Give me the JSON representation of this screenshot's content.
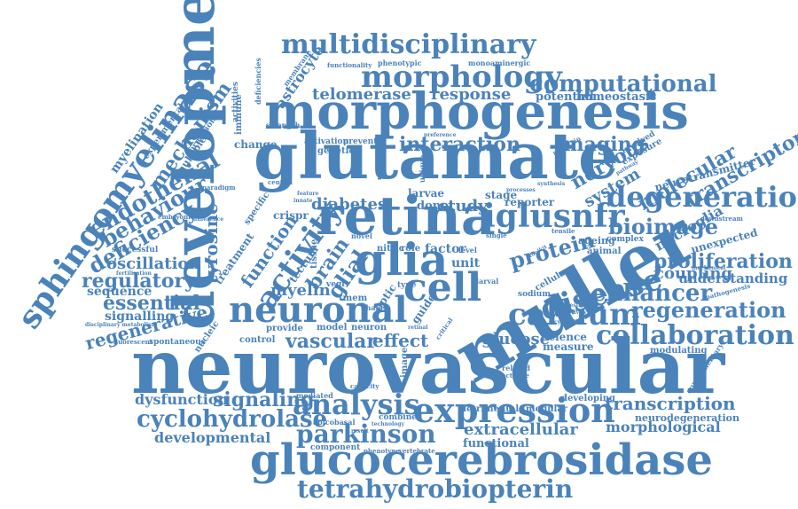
{
  "accent_color": "#4a82ba",
  "words": {
    "neurovascular": "neurovascular",
    "glutamate": "glutamate",
    "morphogenesis": "morphogenesis",
    "development": "development",
    "muller": "muller",
    "retina": "retina",
    "glucocerebrosidase": "glucocerebrosidase",
    "sphingomyelinase": "sphingomyelinase",
    "multidisciplinary": "multidisciplinary",
    "morphology": "morphology",
    "neuronal": "neuronal",
    "expression": "expression",
    "calcium": "calcium",
    "glia": "glia",
    "cell": "cell",
    "collaboration": "collaboration",
    "degeneration": "degeneration",
    "iglusnfr": "iglusnfr",
    "disease": "disease",
    "activity": "activity",
    "analysis": "analysis",
    "parkinson": "parkinson",
    "tetrahydrobiopterin": "tetrahydrobiopterin",
    "cyclohydrolase": "cyclohydrolase",
    "regeneration": "regeneration",
    "enhancer": "enhancer",
    "proliferation": "proliferation",
    "computational": "computational",
    "telomerase": "telomerase",
    "response": "response",
    "interaction": "interaction",
    "imaging": "imaging",
    "endothelial": "endothelial",
    "mechanism": "mechanism",
    "behaviour": "behaviour",
    "deficiency": "deficiency",
    "oscillation": "oscillation",
    "regulatory": "regulatory",
    "sequence": "sequence",
    "essential": "essential",
    "signalling": "signalling",
    "regenerative": "regenerative",
    "vascular": "vascular",
    "effect": "effect",
    "glucose": "glucose",
    "signaling": "signaling",
    "dysfunction": "dysfunction",
    "developmental": "developmental",
    "extracellular": "extracellular",
    "transcription": "transcription",
    "morphological": "morphological",
    "bioimage": "bioimage",
    "coupling": "coupling",
    "understanding": "understanding",
    "microglia": "microglia",
    "transcriptome": "transcriptome",
    "molecular": "molecular",
    "nervous": "nervous",
    "system": "system",
    "protein": "protein",
    "diabetes": "diabetes",
    "study": "study",
    "myelin": "myelin",
    "brain": "brain",
    "glial": "glial",
    "function": "function",
    "tyrosine": "tyrosine",
    "myelination": "myelination",
    "astrocyte": "astrocyte",
    "potential": "potential",
    "homeostasis": "homeostasis",
    "neurotransmitter": "neurotransmitter",
    "unexpected": "unexpected",
    "neurodegeneration": "neurodegeneration",
    "modulating": "modulating",
    "developing": "developing",
    "detrimental": "detrimental",
    "modular": "modular",
    "functional": "functional",
    "science": "science",
    "measure": "measure",
    "ageing": "ageing",
    "complex": "complex",
    "animal": "animal",
    "reporter": "reporter",
    "stage": "stage",
    "donor": "donor",
    "larvae": "larvae",
    "factor": "factor",
    "unit": "unit",
    "nitric": "nitric",
    "role": "role",
    "genetic": "genetic",
    "crispr": "crispr",
    "treatment": "treatment",
    "model": "model",
    "neuron": "neuron",
    "control": "control",
    "nucleic": "nucleic",
    "provide": "provide",
    "successful": "successful",
    "spontaneous": "spontaneous",
    "fluorescent": "fluorescent",
    "combined": "combined",
    "component": "component",
    "phenotype": "phenotype",
    "vertebrate": "vertebrate",
    "apicobasal": "apicobasal",
    "mediated": "mediated",
    "capacity": "capacity",
    "optic": "optic",
    "guide": "guide",
    "activation": "activation",
    "prevent": "prevent",
    "change": "change",
    "strength": "strength",
    "immune": "immune",
    "activities": "activities",
    "deficiencies": "deficiencies",
    "membrane": "membrane",
    "functionality": "functionality",
    "phenotypic": "phenotypic",
    "monoaminergic": "monoaminergic",
    "experimental": "experimental",
    "formation": "formation",
    "multiple": "multiple",
    "embryonic": "embryonic",
    "paradigm": "paradigm",
    "specific": "specific",
    "tectum": "tectum",
    "tissue": "tissue",
    "vegf": "vegf",
    "tmem": "tmem",
    "type": "type",
    "shape": "shape",
    "sodium": "sodium",
    "cellular": "cellular",
    "related": "related",
    "activate": "activate",
    "image": "image",
    "pathogenesis": "pathogenesis",
    "supplementary": "supplementary",
    "downstream": "downstream",
    "mechanical": "mechanical",
    "tensile": "tensile",
    "single": "single",
    "level": "level",
    "larval": "larval",
    "novel": "novel",
    "critical": "critical",
    "retinal": "retinal",
    "stimulation": "stimulation",
    "difference": "difference",
    "fertilisation": "fertilisation",
    "disciplinary metabolism": "disciplinary metabolism",
    "feature": "feature",
    "innate": "innate",
    "central": "central",
    "exposure": "exposure",
    "involved": "involved",
    "maintain": "maintain",
    "processes": "processes",
    "synthesis": "synthesis",
    "preference": "preference",
    "unique": "unique",
    "region": "region",
    "toolkit": "toolkit",
    "pathway": "pathway",
    "question": "question",
    "reactivity": "reactivity",
    "cytosolic": "cytosolic",
    "result": "result",
    "technology": "technology"
  }
}
